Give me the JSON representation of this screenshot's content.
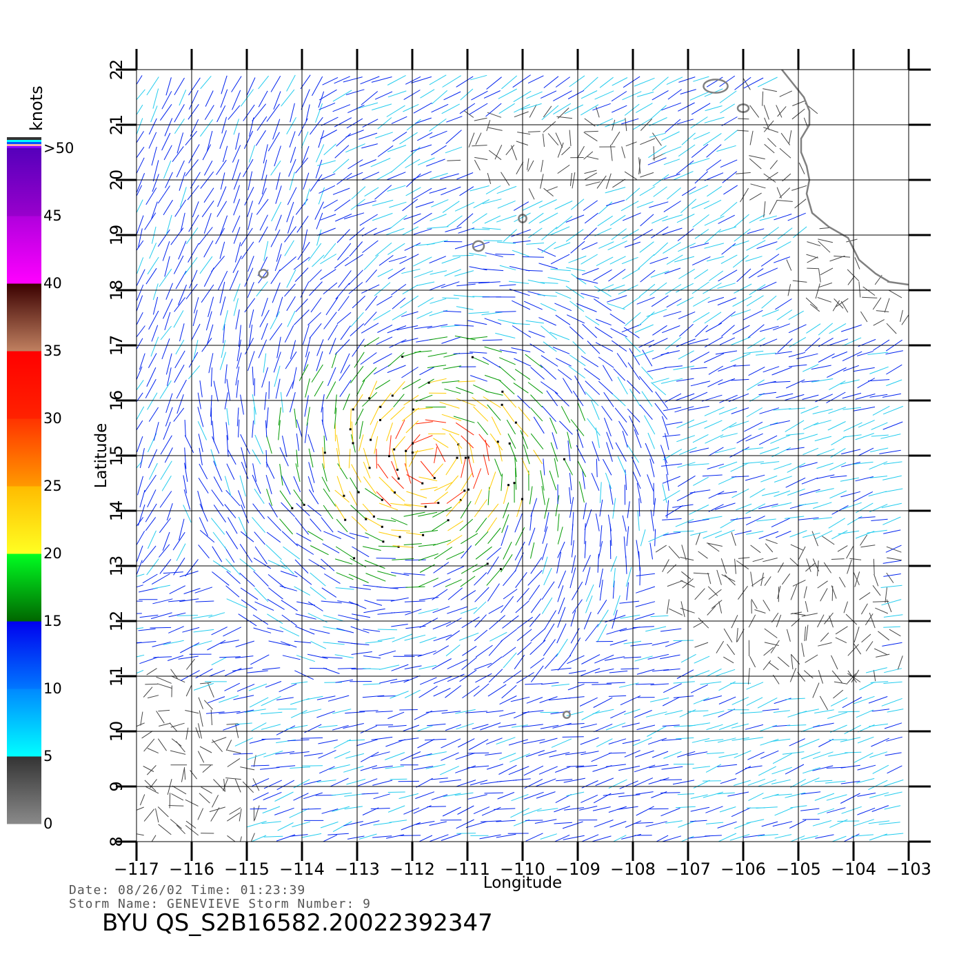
{
  "chart_data": {
    "type": "vector field",
    "xlabel": "Longitude",
    "ylabel": "Latitude",
    "xlim": [
      -117,
      -103
    ],
    "ylim": [
      8,
      22
    ],
    "x_ticks": [
      -117,
      -116,
      -115,
      -114,
      -113,
      -112,
      -111,
      -110,
      -109,
      -108,
      -107,
      -106,
      -105,
      -104,
      -103
    ],
    "x_tick_labels": [
      "−117",
      "−116",
      "−115",
      "−114",
      "−113",
      "−112",
      "−111",
      "−110",
      "−109",
      "−108",
      "−107",
      "−106",
      "−105",
      "−104",
      "−103"
    ],
    "y_ticks": [
      8,
      9,
      10,
      11,
      12,
      13,
      14,
      15,
      16,
      17,
      18,
      19,
      20,
      21,
      22
    ],
    "y_tick_labels": [
      "8",
      "9",
      "10",
      "11",
      "12",
      "13",
      "14",
      "15",
      "16",
      "17",
      "18",
      "19",
      "20",
      "21",
      "22"
    ],
    "grid": true,
    "colorbar": {
      "unit": "knots",
      "ticks": [
        "0",
        "5",
        "10",
        "15",
        "20",
        "25",
        "30",
        "35",
        "40",
        "45",
        ">50"
      ],
      "bins": [
        {
          "from": 0,
          "to": 5,
          "colors": [
            "#8a8a8a",
            "#333333"
          ]
        },
        {
          "from": 5,
          "to": 10,
          "colors": [
            "#00ffff",
            "#0088ff"
          ]
        },
        {
          "from": 10,
          "to": 15,
          "colors": [
            "#0077ff",
            "#0000ee"
          ]
        },
        {
          "from": 15,
          "to": 20,
          "colors": [
            "#006600",
            "#00ff22"
          ]
        },
        {
          "from": 20,
          "to": 25,
          "colors": [
            "#ffff22",
            "#ffbb00"
          ]
        },
        {
          "from": 25,
          "to": 30,
          "colors": [
            "#ff9900",
            "#ff3300"
          ]
        },
        {
          "from": 30,
          "to": 35,
          "colors": [
            "#ff2200",
            "#ff0000"
          ]
        },
        {
          "from": 35,
          "to": 40,
          "colors": [
            "#c08060",
            "#3a0000"
          ]
        },
        {
          "from": 40,
          "to": 45,
          "colors": [
            "#ff00ff",
            "#b000dd"
          ]
        },
        {
          "from": 45,
          "to": 50,
          "colors": [
            "#9900cc",
            "#5500bb"
          ]
        }
      ]
    },
    "speed_colors": {
      "calm": "#444444",
      "light": "#22ccee",
      "moderate": "#0022ee",
      "fresh": "#009900",
      "strong": "#ffcc00",
      "gale": "#ff2200"
    },
    "rain_flag_color": "#000000",
    "storm_center": [
      -111.7,
      14.9
    ],
    "coastline": [
      [
        -105.3,
        22.0
      ],
      [
        -105.1,
        21.75
      ],
      [
        -104.9,
        21.5
      ],
      [
        -104.8,
        21.25
      ],
      [
        -104.8,
        21.0
      ],
      [
        -104.95,
        20.75
      ],
      [
        -104.95,
        20.5
      ],
      [
        -104.85,
        20.25
      ],
      [
        -104.8,
        20.0
      ],
      [
        -104.85,
        19.75
      ],
      [
        -104.75,
        19.4
      ],
      [
        -104.45,
        19.15
      ],
      [
        -104.1,
        18.95
      ],
      [
        -103.9,
        18.55
      ],
      [
        -103.6,
        18.3
      ],
      [
        -103.35,
        18.15
      ],
      [
        -103.0,
        18.1
      ]
    ],
    "islands": [
      {
        "lon": -106.5,
        "lat": 21.7,
        "rx": 0.22,
        "ry": 0.12
      },
      {
        "lon": -106.0,
        "lat": 21.3,
        "rx": 0.1,
        "ry": 0.07
      },
      {
        "lon": -110.0,
        "lat": 19.3,
        "rx": 0.07,
        "ry": 0.07
      },
      {
        "lon": -110.8,
        "lat": 18.8,
        "rx": 0.1,
        "ry": 0.09
      },
      {
        "lon": -114.7,
        "lat": 18.3,
        "rx": 0.08,
        "ry": 0.07
      },
      {
        "lon": -109.2,
        "lat": 10.3,
        "rx": 0.06,
        "ry": 0.06
      }
    ]
  },
  "info": {
    "date_line": "Date: 08/26/02   Time: 01:23:39",
    "storm_line": "Storm Name: GENEVIEVE   Storm Number: 9",
    "file_id": "BYU QS_S2B16582.20022392347"
  }
}
